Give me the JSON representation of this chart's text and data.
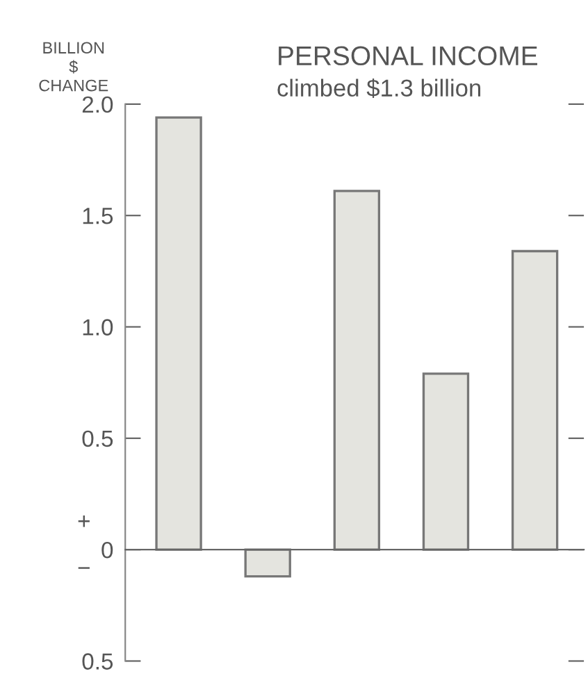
{
  "chart_data": {
    "type": "bar",
    "title": "PERSONAL INCOME",
    "subtitle": "climbed $1.3 billion",
    "ylabel": "BILLION\n$\nCHANGE",
    "categories": [
      null,
      null,
      null,
      null,
      null
    ],
    "values": [
      1.94,
      -0.12,
      1.61,
      0.79,
      1.34
    ],
    "color": "#e4e4df",
    "ylim": [
      -0.5,
      2.0
    ],
    "yticks": [
      {
        "value": 2.0,
        "label": "2.0"
      },
      {
        "value": 1.5,
        "label": "1.5"
      },
      {
        "value": 1.0,
        "label": "1.0"
      },
      {
        "value": 0.5,
        "label": "0.5"
      },
      0,
      {
        "value": -0.5,
        "label": "0.5"
      }
    ],
    "annotations": [
      "+",
      "−"
    ]
  }
}
